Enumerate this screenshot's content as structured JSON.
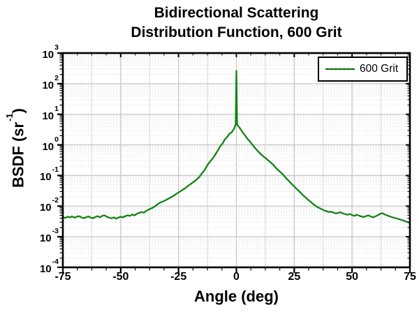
{
  "chart_data": {
    "type": "line",
    "title_line1": "Bidirectional Scattering",
    "title_line2": "Distribution Function, 600 Grit",
    "xlabel": "Angle (deg)",
    "ylabel_pre": "BSDF (sr",
    "ylabel_sup": "-1",
    "ylabel_post": ")",
    "x_axis": {
      "min": -75,
      "max": 75,
      "major_ticks": [
        -75,
        -50,
        -25,
        0,
        25,
        50,
        75
      ],
      "major_tick_labels": [
        "-75",
        "-50",
        "-25",
        "0",
        "25",
        "50",
        "75"
      ],
      "minor_tick_step": 6.25,
      "minor_grid_step": 12.5
    },
    "y_axis": {
      "scale": "log",
      "tick_label_base": "10",
      "decade_exponents": [
        3,
        2,
        1,
        0,
        -1,
        -2,
        -3,
        -4
      ],
      "minor_mantissas": [
        2,
        3,
        4,
        5,
        6,
        7,
        8,
        9
      ]
    },
    "grid": {
      "on": true,
      "major_color": "#c6c6c6",
      "minor_color": "#dcdcdc"
    },
    "legend": {
      "label": "600 Grit",
      "position": "top-right"
    },
    "series": [
      {
        "name": "600 Grit",
        "color": "#128212",
        "dot_color": "#0a5c0a",
        "line_width": 2.3,
        "points": [
          [
            -75,
            0.0044
          ],
          [
            -74,
            0.0041
          ],
          [
            -73,
            0.0045
          ],
          [
            -72,
            0.0043
          ],
          [
            -71,
            0.0046
          ],
          [
            -70,
            0.0042
          ],
          [
            -69,
            0.0045
          ],
          [
            -68,
            0.0047
          ],
          [
            -67,
            0.0043
          ],
          [
            -66,
            0.004
          ],
          [
            -65,
            0.0043
          ],
          [
            -64,
            0.0046
          ],
          [
            -63,
            0.0042
          ],
          [
            -62,
            0.004
          ],
          [
            -61,
            0.0044
          ],
          [
            -60,
            0.0047
          ],
          [
            -59,
            0.0043
          ],
          [
            -58,
            0.0048
          ],
          [
            -57,
            0.005
          ],
          [
            -56,
            0.0045
          ],
          [
            -55,
            0.0042
          ],
          [
            -54,
            0.004
          ],
          [
            -53,
            0.0043
          ],
          [
            -52,
            0.0039
          ],
          [
            -51,
            0.0042
          ],
          [
            -50,
            0.0045
          ],
          [
            -49,
            0.0043
          ],
          [
            -48,
            0.0047
          ],
          [
            -47,
            0.005
          ],
          [
            -46,
            0.0048
          ],
          [
            -45,
            0.0053
          ],
          [
            -44,
            0.005
          ],
          [
            -43,
            0.0056
          ],
          [
            -42,
            0.006
          ],
          [
            -41,
            0.0064
          ],
          [
            -40,
            0.0061
          ],
          [
            -39,
            0.007
          ],
          [
            -38,
            0.0076
          ],
          [
            -37,
            0.0083
          ],
          [
            -36,
            0.009
          ],
          [
            -35,
            0.01
          ],
          [
            -34,
            0.0115
          ],
          [
            -33,
            0.013
          ],
          [
            -32,
            0.014
          ],
          [
            -31,
            0.015
          ],
          [
            -30,
            0.0165
          ],
          [
            -29,
            0.018
          ],
          [
            -28,
            0.02
          ],
          [
            -27,
            0.022
          ],
          [
            -26,
            0.025
          ],
          [
            -25,
            0.028
          ],
          [
            -24,
            0.031
          ],
          [
            -23,
            0.035
          ],
          [
            -22,
            0.039
          ],
          [
            -21,
            0.045
          ],
          [
            -20,
            0.051
          ],
          [
            -19,
            0.058
          ],
          [
            -18,
            0.066
          ],
          [
            -17,
            0.076
          ],
          [
            -16,
            0.09
          ],
          [
            -15,
            0.115
          ],
          [
            -14,
            0.14
          ],
          [
            -13,
            0.19
          ],
          [
            -12,
            0.25
          ],
          [
            -11,
            0.31
          ],
          [
            -10,
            0.38
          ],
          [
            -9,
            0.5
          ],
          [
            -8,
            0.66
          ],
          [
            -7,
            0.9
          ],
          [
            -6,
            1.1
          ],
          [
            -5,
            1.5
          ],
          [
            -4,
            1.8
          ],
          [
            -3,
            2.3
          ],
          [
            -2,
            2.6
          ],
          [
            -1,
            3.4
          ],
          [
            -0.3,
            4.6
          ],
          [
            0,
            260
          ],
          [
            0.3,
            4.6
          ],
          [
            1,
            4.0
          ],
          [
            2,
            3.1
          ],
          [
            3,
            2.4
          ],
          [
            4,
            1.9
          ],
          [
            5,
            1.5
          ],
          [
            6,
            1.25
          ],
          [
            7,
            1.0
          ],
          [
            8,
            0.8
          ],
          [
            9,
            0.66
          ],
          [
            10,
            0.55
          ],
          [
            11,
            0.47
          ],
          [
            12,
            0.4
          ],
          [
            13,
            0.35
          ],
          [
            14,
            0.3
          ],
          [
            15,
            0.26
          ],
          [
            16,
            0.22
          ],
          [
            17,
            0.18
          ],
          [
            18,
            0.15
          ],
          [
            19,
            0.13
          ],
          [
            20,
            0.11
          ],
          [
            21,
            0.09
          ],
          [
            22,
            0.075
          ],
          [
            23,
            0.062
          ],
          [
            24,
            0.052
          ],
          [
            25,
            0.044
          ],
          [
            26,
            0.037
          ],
          [
            27,
            0.031
          ],
          [
            28,
            0.026
          ],
          [
            29,
            0.022
          ],
          [
            30,
            0.019
          ],
          [
            31,
            0.016
          ],
          [
            32,
            0.014
          ],
          [
            33,
            0.012
          ],
          [
            34,
            0.0105
          ],
          [
            35,
            0.0093
          ],
          [
            36,
            0.0085
          ],
          [
            37,
            0.0078
          ],
          [
            38,
            0.0072
          ],
          [
            39,
            0.0068
          ],
          [
            40,
            0.0064
          ],
          [
            41,
            0.0066
          ],
          [
            42,
            0.0061
          ],
          [
            43,
            0.0058
          ],
          [
            44,
            0.006
          ],
          [
            45,
            0.0063
          ],
          [
            46,
            0.0058
          ],
          [
            47,
            0.0055
          ],
          [
            48,
            0.0052
          ],
          [
            49,
            0.0055
          ],
          [
            50,
            0.0051
          ],
          [
            51,
            0.0048
          ],
          [
            52,
            0.0052
          ],
          [
            53,
            0.0049
          ],
          [
            54,
            0.0046
          ],
          [
            55,
            0.0044
          ],
          [
            56,
            0.0047
          ],
          [
            57,
            0.005
          ],
          [
            58,
            0.0046
          ],
          [
            59,
            0.0043
          ],
          [
            60,
            0.0046
          ],
          [
            61,
            0.005
          ],
          [
            62,
            0.0055
          ],
          [
            63,
            0.0059
          ],
          [
            64,
            0.0054
          ],
          [
            65,
            0.005
          ],
          [
            66,
            0.0047
          ],
          [
            67,
            0.0044
          ],
          [
            68,
            0.0042
          ],
          [
            69,
            0.004
          ],
          [
            70,
            0.0038
          ],
          [
            71,
            0.0036
          ],
          [
            72,
            0.0034
          ],
          [
            73,
            0.0032
          ],
          [
            74,
            0.003
          ],
          [
            75,
            0.0028
          ]
        ]
      }
    ]
  }
}
